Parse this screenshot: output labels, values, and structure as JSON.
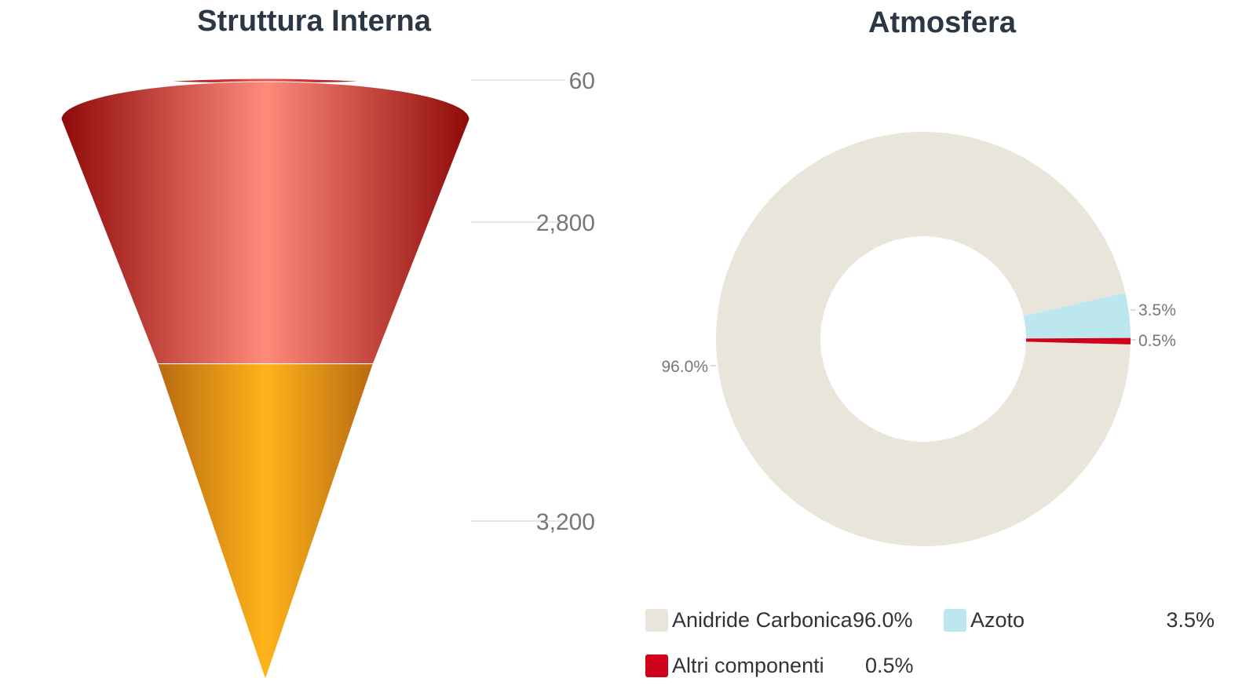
{
  "chart_data": [
    {
      "type": "funnel",
      "title": "Struttura Interna",
      "tick_labels": [
        "60",
        "2,800",
        "3,200"
      ],
      "layers": [
        {
          "name": "",
          "thickness": 60,
          "color": "#e3262b"
        },
        {
          "name": "",
          "thickness": 2800,
          "color": "#c6312b"
        },
        {
          "name": "",
          "thickness": 3200,
          "color": "#f5a623"
        }
      ]
    },
    {
      "type": "pie",
      "title": "Atmosfera",
      "donut": true,
      "legend_position": "bottom",
      "slices": [
        {
          "name": "Anidride Carbonica",
          "value": 96.0,
          "label": "96.0%",
          "color": "#e9e5da"
        },
        {
          "name": "Azoto",
          "value": 3.5,
          "label": "3.5%",
          "color": "#bde7ef"
        },
        {
          "name": "Altri componenti",
          "value": 0.5,
          "label": "0.5%",
          "color": "#d0021b"
        }
      ]
    }
  ]
}
